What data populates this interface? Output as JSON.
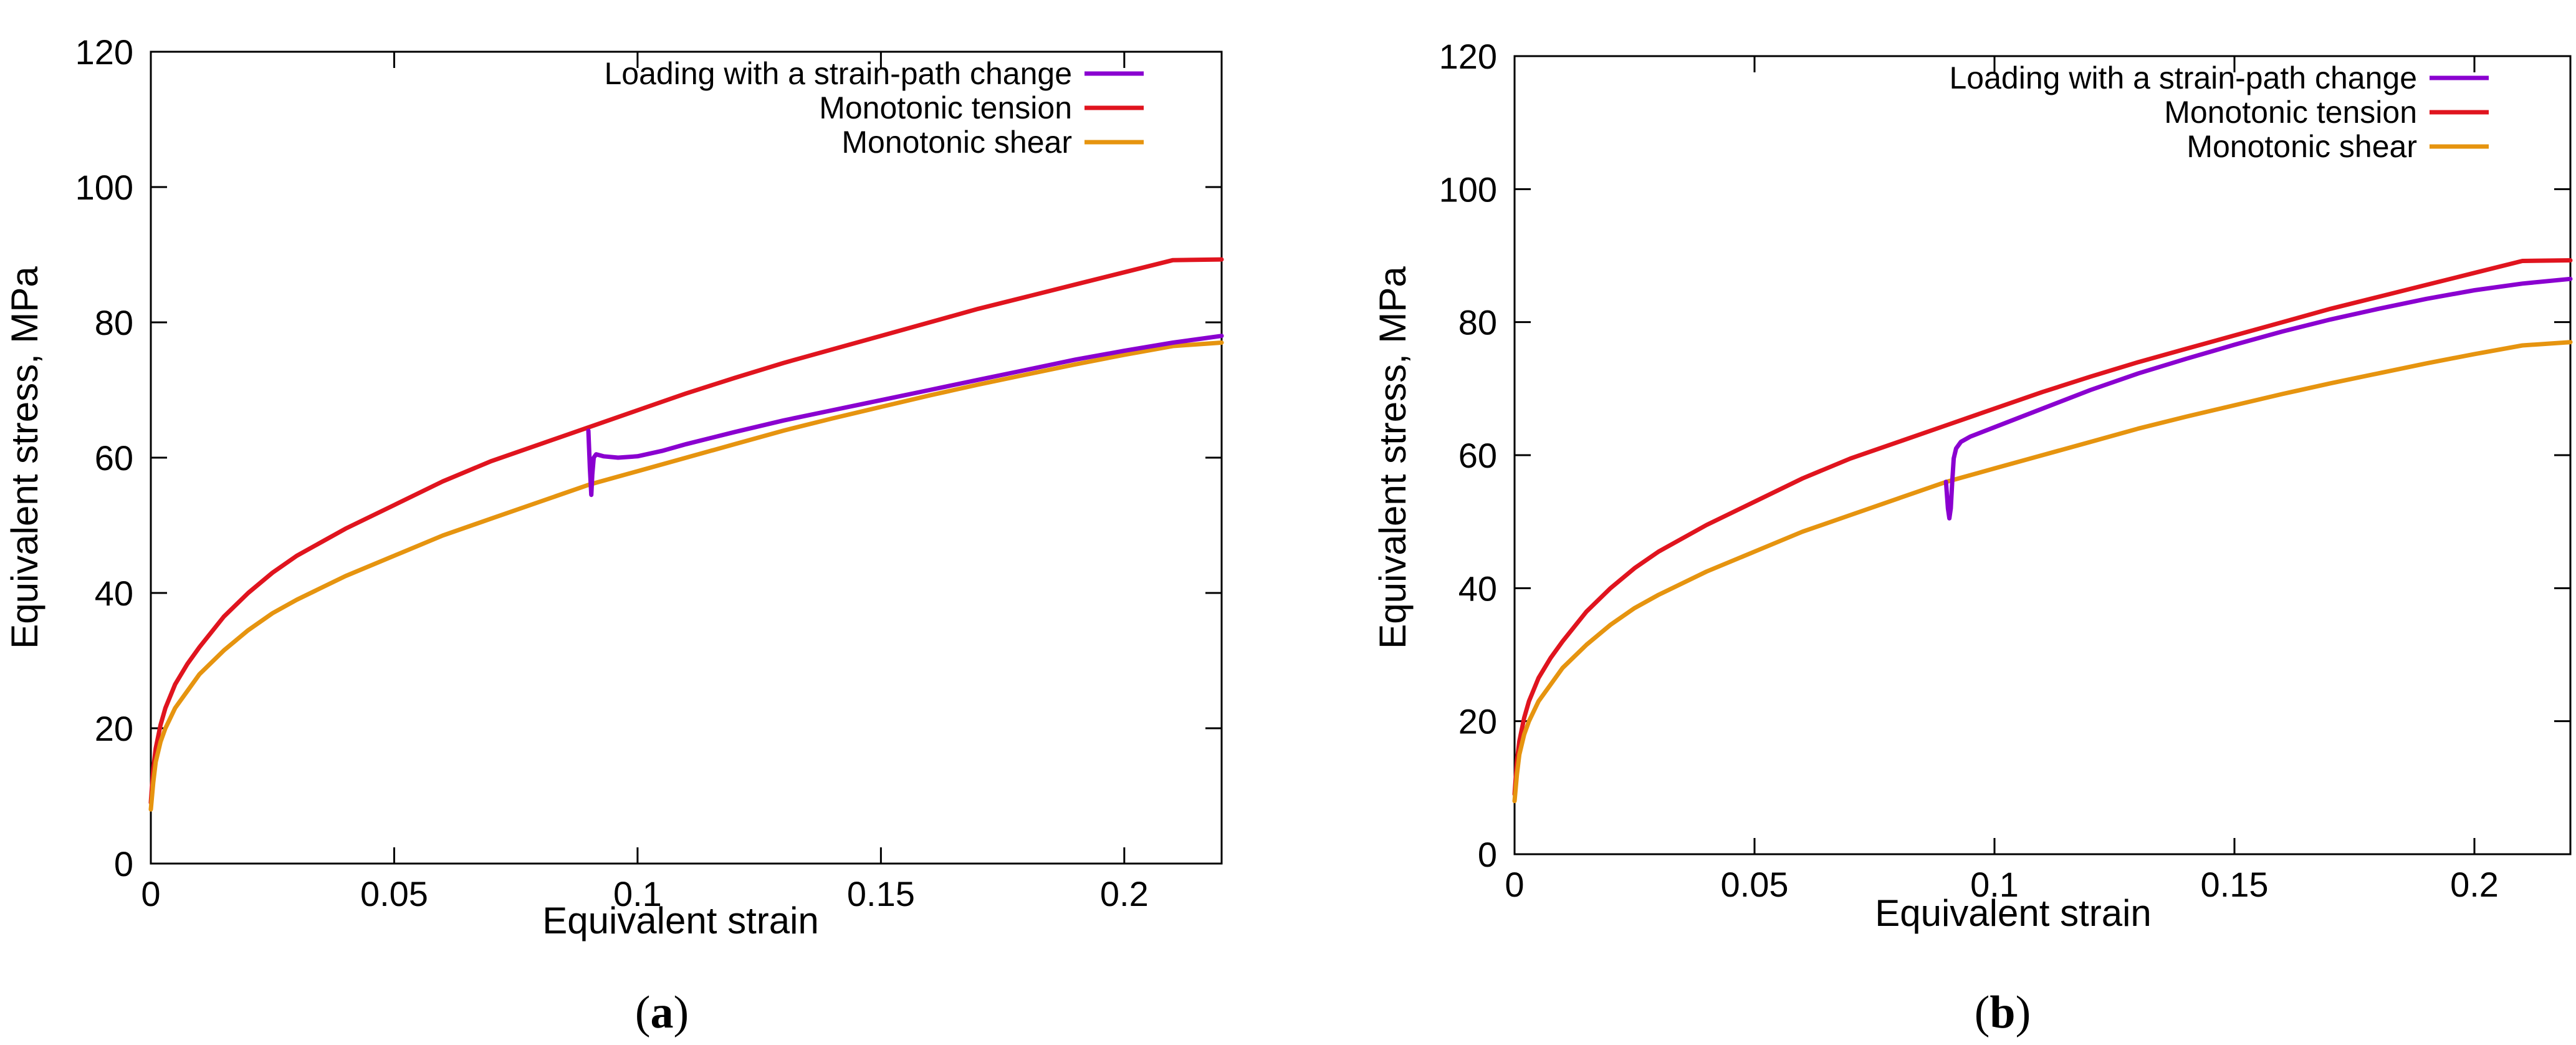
{
  "colors": {
    "strain_path_change": "#8a00d0",
    "monotonic_tension": "#e0141e",
    "monotonic_shear": "#e6940f",
    "axis": "#000000"
  },
  "chart_data": [
    {
      "type": "line",
      "panel_label": "a",
      "xlabel": "Equivalent strain",
      "ylabel": "Equivalent stress, MPa",
      "xlim": [
        0,
        0.22
      ],
      "ylim": [
        0,
        120
      ],
      "x_ticks": [
        0,
        0.05,
        0.1,
        0.15,
        0.2
      ],
      "x_tick_labels": [
        "0",
        "0.05",
        "0.1",
        "0.15",
        "0.2"
      ],
      "y_ticks": [
        0,
        20,
        40,
        60,
        80,
        100,
        120
      ],
      "y_tick_labels": [
        "0",
        "20",
        "40",
        "60",
        "80",
        "100",
        "120"
      ],
      "grid": false,
      "legend_position": "top-right",
      "series": [
        {
          "name": "Loading with a strain-path change",
          "color_key": "strain_path_change",
          "x": [
            0.0899,
            0.0902,
            0.0905,
            0.0907,
            0.091,
            0.0915,
            0.093,
            0.096,
            0.1,
            0.105,
            0.11,
            0.12,
            0.13,
            0.14,
            0.15,
            0.16,
            0.17,
            0.18,
            0.19,
            0.2,
            0.21,
            0.22
          ],
          "values": [
            64.0,
            58.5,
            54.5,
            57.5,
            60.0,
            60.5,
            60.2,
            60.0,
            60.2,
            61.0,
            62.0,
            63.8,
            65.5,
            67.0,
            68.5,
            70.0,
            71.5,
            73.0,
            74.5,
            75.8,
            77.0,
            78.0
          ]
        },
        {
          "name": "Monotonic tension",
          "color_key": "monotonic_tension",
          "x": [
            0.0,
            0.0005,
            0.001,
            0.002,
            0.003,
            0.005,
            0.0075,
            0.01,
            0.015,
            0.02,
            0.025,
            0.03,
            0.04,
            0.05,
            0.06,
            0.07,
            0.08,
            0.09,
            0.1,
            0.11,
            0.12,
            0.13,
            0.14,
            0.15,
            0.16,
            0.17,
            0.18,
            0.19,
            0.2,
            0.21,
            0.22
          ],
          "values": [
            9.0,
            14.0,
            17.0,
            20.5,
            23.0,
            26.5,
            29.5,
            32.0,
            36.5,
            40.0,
            43.0,
            45.5,
            49.5,
            53.0,
            56.5,
            59.5,
            62.0,
            64.5,
            67.0,
            69.5,
            71.8,
            74.0,
            76.0,
            78.0,
            80.0,
            82.0,
            83.8,
            85.6,
            87.4,
            89.2,
            89.3
          ]
        },
        {
          "name": "Monotonic shear",
          "color_key": "monotonic_shear",
          "x": [
            0.0,
            0.0005,
            0.001,
            0.002,
            0.003,
            0.005,
            0.0075,
            0.01,
            0.015,
            0.02,
            0.025,
            0.03,
            0.04,
            0.05,
            0.06,
            0.07,
            0.08,
            0.09,
            0.1,
            0.11,
            0.12,
            0.13,
            0.14,
            0.15,
            0.16,
            0.17,
            0.18,
            0.19,
            0.2,
            0.21,
            0.22
          ],
          "values": [
            8.0,
            12.0,
            15.0,
            18.0,
            20.0,
            23.0,
            25.5,
            28.0,
            31.5,
            34.5,
            37.0,
            39.0,
            42.5,
            45.5,
            48.5,
            51.0,
            53.5,
            56.0,
            58.0,
            60.0,
            62.0,
            64.0,
            65.8,
            67.5,
            69.2,
            70.8,
            72.3,
            73.8,
            75.2,
            76.5,
            77.0
          ]
        }
      ]
    },
    {
      "type": "line",
      "panel_label": "b",
      "xlabel": "Equivalent strain",
      "ylabel": "Equivalent stress, MPa",
      "xlim": [
        0,
        0.22
      ],
      "ylim": [
        0,
        120
      ],
      "x_ticks": [
        0,
        0.05,
        0.1,
        0.15,
        0.2
      ],
      "x_tick_labels": [
        "0",
        "0.05",
        "0.1",
        "0.15",
        "0.2"
      ],
      "y_ticks": [
        0,
        20,
        40,
        60,
        80,
        100,
        120
      ],
      "y_tick_labels": [
        "0",
        "20",
        "40",
        "60",
        "80",
        "100",
        "120"
      ],
      "grid": false,
      "legend_position": "top-right",
      "series": [
        {
          "name": "Loading with a strain-path change",
          "color_key": "strain_path_change",
          "x": [
            0.0899,
            0.0903,
            0.0906,
            0.0909,
            0.0912,
            0.0915,
            0.092,
            0.093,
            0.095,
            0.1,
            0.11,
            0.12,
            0.13,
            0.14,
            0.15,
            0.16,
            0.17,
            0.18,
            0.19,
            0.2,
            0.21,
            0.22
          ],
          "values": [
            56.0,
            52.0,
            50.5,
            52.0,
            56.0,
            59.5,
            61.0,
            62.0,
            62.8,
            64.2,
            67.0,
            69.8,
            72.3,
            74.5,
            76.6,
            78.6,
            80.4,
            82.0,
            83.5,
            84.8,
            85.8,
            86.5
          ]
        },
        {
          "name": "Monotonic tension",
          "color_key": "monotonic_tension",
          "x": [
            0.0,
            0.0005,
            0.001,
            0.002,
            0.003,
            0.005,
            0.0075,
            0.01,
            0.015,
            0.02,
            0.025,
            0.03,
            0.04,
            0.05,
            0.06,
            0.07,
            0.08,
            0.09,
            0.1,
            0.11,
            0.12,
            0.13,
            0.14,
            0.15,
            0.16,
            0.17,
            0.18,
            0.19,
            0.2,
            0.21,
            0.22
          ],
          "values": [
            9.0,
            14.0,
            17.0,
            20.5,
            23.0,
            26.5,
            29.5,
            32.0,
            36.5,
            40.0,
            43.0,
            45.5,
            49.5,
            53.0,
            56.5,
            59.5,
            62.0,
            64.5,
            67.0,
            69.5,
            71.8,
            74.0,
            76.0,
            78.0,
            80.0,
            82.0,
            83.8,
            85.6,
            87.4,
            89.2,
            89.3
          ]
        },
        {
          "name": "Monotonic shear",
          "color_key": "monotonic_shear",
          "x": [
            0.0,
            0.0005,
            0.001,
            0.002,
            0.003,
            0.005,
            0.0075,
            0.01,
            0.015,
            0.02,
            0.025,
            0.03,
            0.04,
            0.05,
            0.06,
            0.07,
            0.08,
            0.09,
            0.1,
            0.11,
            0.12,
            0.13,
            0.14,
            0.15,
            0.16,
            0.17,
            0.18,
            0.19,
            0.2,
            0.21,
            0.22
          ],
          "values": [
            8.0,
            12.0,
            15.0,
            18.0,
            20.0,
            23.0,
            25.5,
            28.0,
            31.5,
            34.5,
            37.0,
            39.0,
            42.5,
            45.5,
            48.5,
            51.0,
            53.5,
            56.0,
            58.0,
            60.0,
            62.0,
            64.0,
            65.8,
            67.5,
            69.2,
            70.8,
            72.3,
            73.8,
            75.2,
            76.5,
            77.0
          ]
        }
      ]
    }
  ]
}
